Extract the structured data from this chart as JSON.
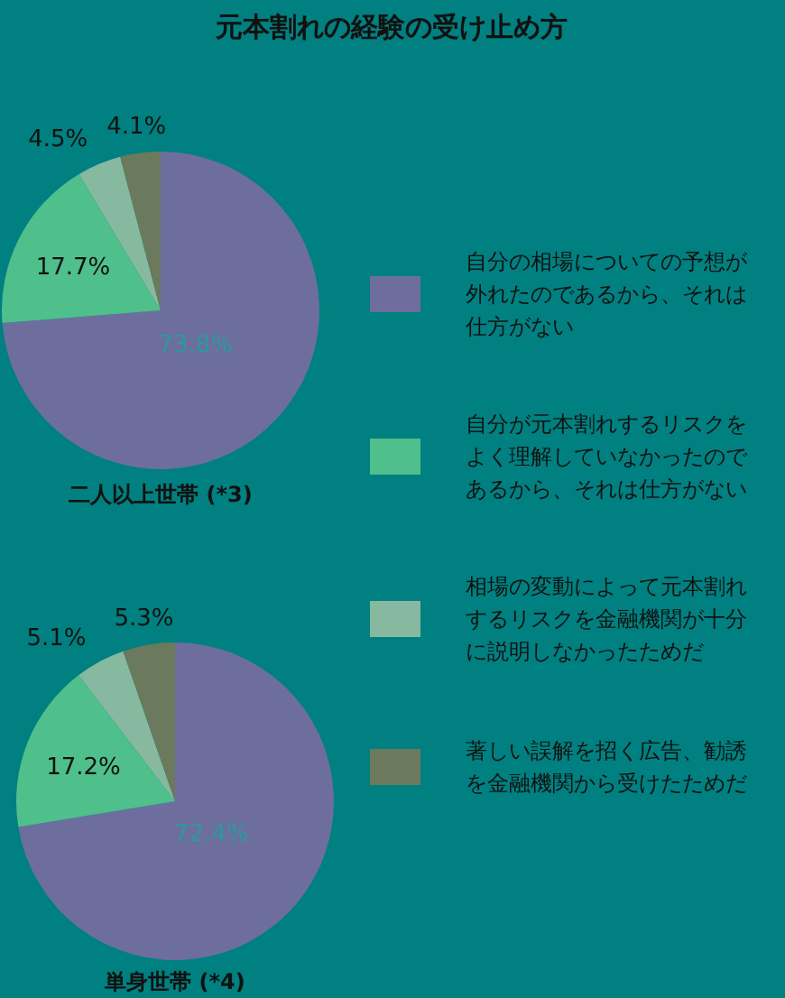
{
  "chart_data": [
    {
      "type": "pie",
      "title": "元本割れの経験の受け止め方",
      "subtitle": "二人以上世帯 (*3)",
      "categories": [
        "自分の相場についての予想が外れたのであるから、それは仕方がない",
        "自分が元本割れするリスクをよく理解していなかったのであるから、それは仕方がない",
        "相場の変動によって元本割れするリスクを金融機関が十分に説明しなかったためだ",
        "著しい誤解を招く広告、勧誘を金融機関から受けたためだ"
      ],
      "values": [
        73.8,
        17.7,
        4.5,
        4.1
      ],
      "value_labels": [
        "73.8%",
        "17.7%",
        "4.5%",
        "4.1%"
      ],
      "colors": [
        "#6e6e9e",
        "#4fbf8c",
        "#86b9a0",
        "#6b7a5c"
      ],
      "legend": "right"
    },
    {
      "type": "pie",
      "subtitle": "単身世帯 (*4)",
      "values": [
        72.4,
        17.2,
        5.1,
        5.3
      ],
      "value_labels": [
        "72.4%",
        "17.2%",
        "5.1%",
        "5.3%"
      ],
      "colors": [
        "#6e6e9e",
        "#4fbf8c",
        "#86b9a0",
        "#6b7a5c"
      ]
    }
  ]
}
